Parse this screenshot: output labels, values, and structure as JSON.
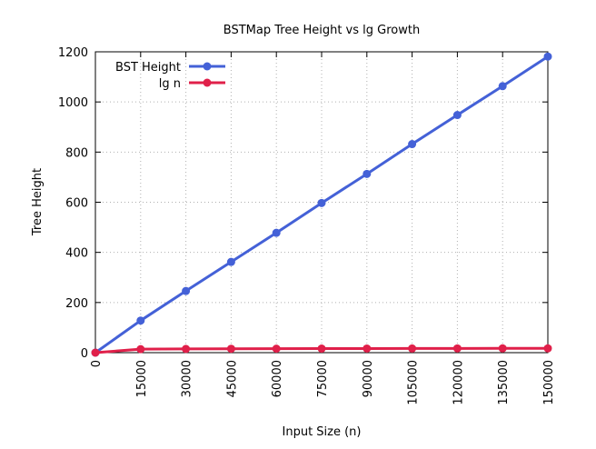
{
  "chart_data": {
    "type": "line",
    "title": "BSTMap Tree Height vs lg Growth",
    "xlabel": "Input Size (n)",
    "ylabel": "Tree Height",
    "x": [
      0,
      15000,
      30000,
      45000,
      60000,
      75000,
      90000,
      105000,
      120000,
      135000,
      150000
    ],
    "xlim": [
      0,
      150000
    ],
    "ylim": [
      0,
      1200
    ],
    "xticks": [
      "0",
      "15000",
      "30000",
      "45000",
      "60000",
      "75000",
      "90000",
      "105000",
      "120000",
      "135000",
      "150000"
    ],
    "yticks": [
      "0",
      "200",
      "400",
      "600",
      "800",
      "1000",
      "1200"
    ],
    "grid": true,
    "legend_position": "top-left",
    "series": [
      {
        "name": "BST Height",
        "color": "#4461d7",
        "values": [
          0,
          128,
          246,
          362,
          478,
          597,
          713,
          832,
          948,
          1063,
          1181
        ]
      },
      {
        "name": "lg n",
        "color": "#e0204a",
        "values": [
          0,
          13.87,
          14.87,
          15.46,
          15.87,
          16.19,
          16.46,
          16.68,
          16.87,
          17.04,
          17.19
        ]
      }
    ]
  }
}
